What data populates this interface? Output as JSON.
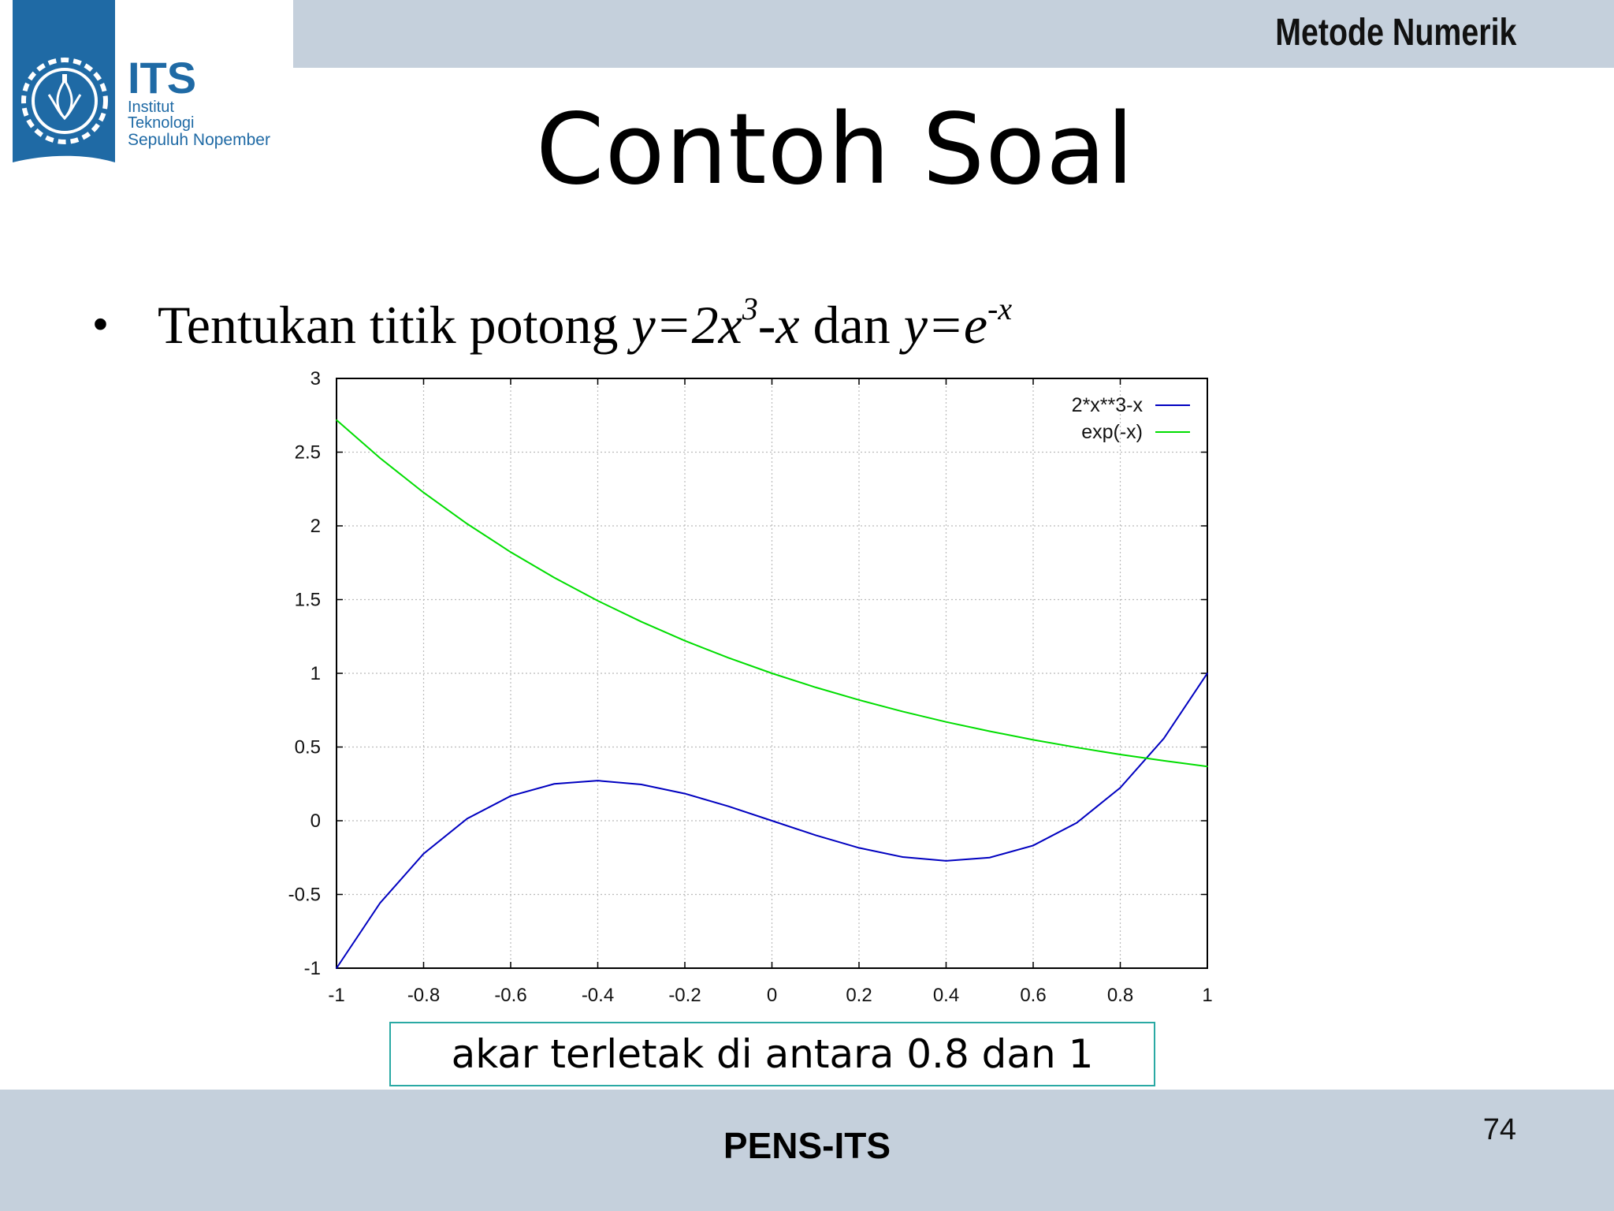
{
  "header": {
    "course": "Metode Numerik"
  },
  "logo": {
    "brand": "ITS",
    "line1": "Institut",
    "line2": "Teknologi",
    "line3": "Sepuluh Nopember"
  },
  "slide": {
    "title": "Contoh Soal",
    "bullet_prefix": "Tentukan titik potong ",
    "eq1_base": "y=2x",
    "eq1_exp": "3",
    "eq1_tail": "-x",
    "conj": " dan ",
    "eq2_base": "y=e",
    "eq2_exp": "-x",
    "answer": "akar terletak di antara 0.8 dan 1"
  },
  "footer": {
    "label": "PENS-ITS",
    "page": "74"
  },
  "colors": {
    "band": "#c5d0dc",
    "logo_blue": "#1f6aa5",
    "series1": "#0000c0",
    "series2": "#00dd00",
    "box_border": "#2aa9a4"
  },
  "chart_data": {
    "type": "line",
    "title": "",
    "xlabel": "",
    "ylabel": "",
    "xlim": [
      -1,
      1
    ],
    "ylim": [
      -1,
      3
    ],
    "xticks": [
      "-1",
      "-0.8",
      "-0.6",
      "-0.4",
      "-0.2",
      "0",
      "0.2",
      "0.4",
      "0.6",
      "0.8",
      "1"
    ],
    "yticks": [
      "-1",
      "-0.5",
      "0",
      "0.5",
      "1",
      "1.5",
      "2",
      "2.5",
      "3"
    ],
    "grid": true,
    "legend_position": "top-right",
    "x": [
      -1,
      -0.9,
      -0.8,
      -0.7,
      -0.6,
      -0.5,
      -0.4,
      -0.3,
      -0.2,
      -0.1,
      0,
      0.1,
      0.2,
      0.3,
      0.4,
      0.5,
      0.6,
      0.7,
      0.8,
      0.9,
      1
    ],
    "series": [
      {
        "name": "2*x**3-x",
        "color": "#0000c0",
        "values": [
          -1,
          -0.558,
          -0.224,
          0.014,
          0.168,
          0.25,
          0.272,
          0.246,
          0.184,
          0.098,
          0,
          -0.098,
          -0.184,
          -0.246,
          -0.272,
          -0.25,
          -0.168,
          -0.014,
          0.224,
          0.558,
          1
        ]
      },
      {
        "name": "exp(-x)",
        "color": "#00dd00",
        "values": [
          2.718,
          2.46,
          2.226,
          2.014,
          1.822,
          1.649,
          1.492,
          1.35,
          1.221,
          1.105,
          1,
          0.905,
          0.819,
          0.741,
          0.67,
          0.607,
          0.549,
          0.497,
          0.449,
          0.407,
          0.368
        ]
      }
    ]
  }
}
